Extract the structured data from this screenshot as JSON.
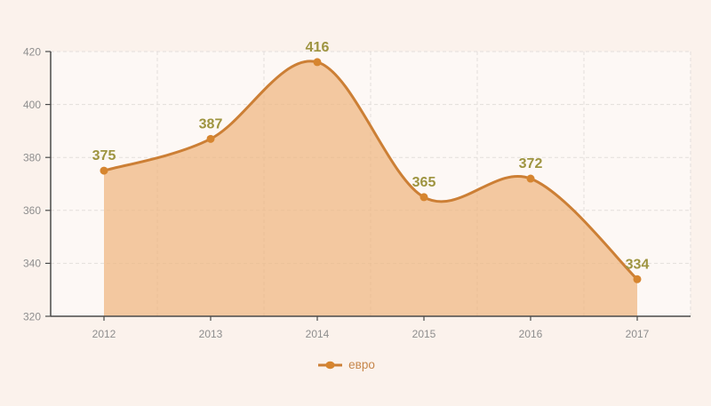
{
  "window": {
    "background_color": "#fbf2ec"
  },
  "chart_data": {
    "type": "area",
    "title": "",
    "xlabel": "",
    "ylabel": "",
    "categories": [
      "2012",
      "2013",
      "2014",
      "2015",
      "2016",
      "2017"
    ],
    "series": [
      {
        "name": "евро",
        "values": [
          375,
          387,
          416,
          365,
          372,
          334
        ]
      }
    ],
    "ylim": [
      320,
      420
    ],
    "yticks": [
      320,
      340,
      360,
      380,
      400,
      420
    ],
    "grid": "dashed",
    "smooth": true,
    "legend_position": "bottom-center",
    "colors": {
      "line": "#cc7f35",
      "marker": "#d6852f",
      "area_fill": "#eeb67f",
      "area_opacity": 0.72,
      "data_label": "#9e9440",
      "axis_label": "#8e8e8e",
      "axis_line": "#4a4a4a",
      "gridline": "#e3dedb",
      "plot_background": "#fdf8f5",
      "legend_text": "#c6864a"
    }
  },
  "legend": {
    "items": [
      {
        "label": "евро"
      }
    ]
  }
}
